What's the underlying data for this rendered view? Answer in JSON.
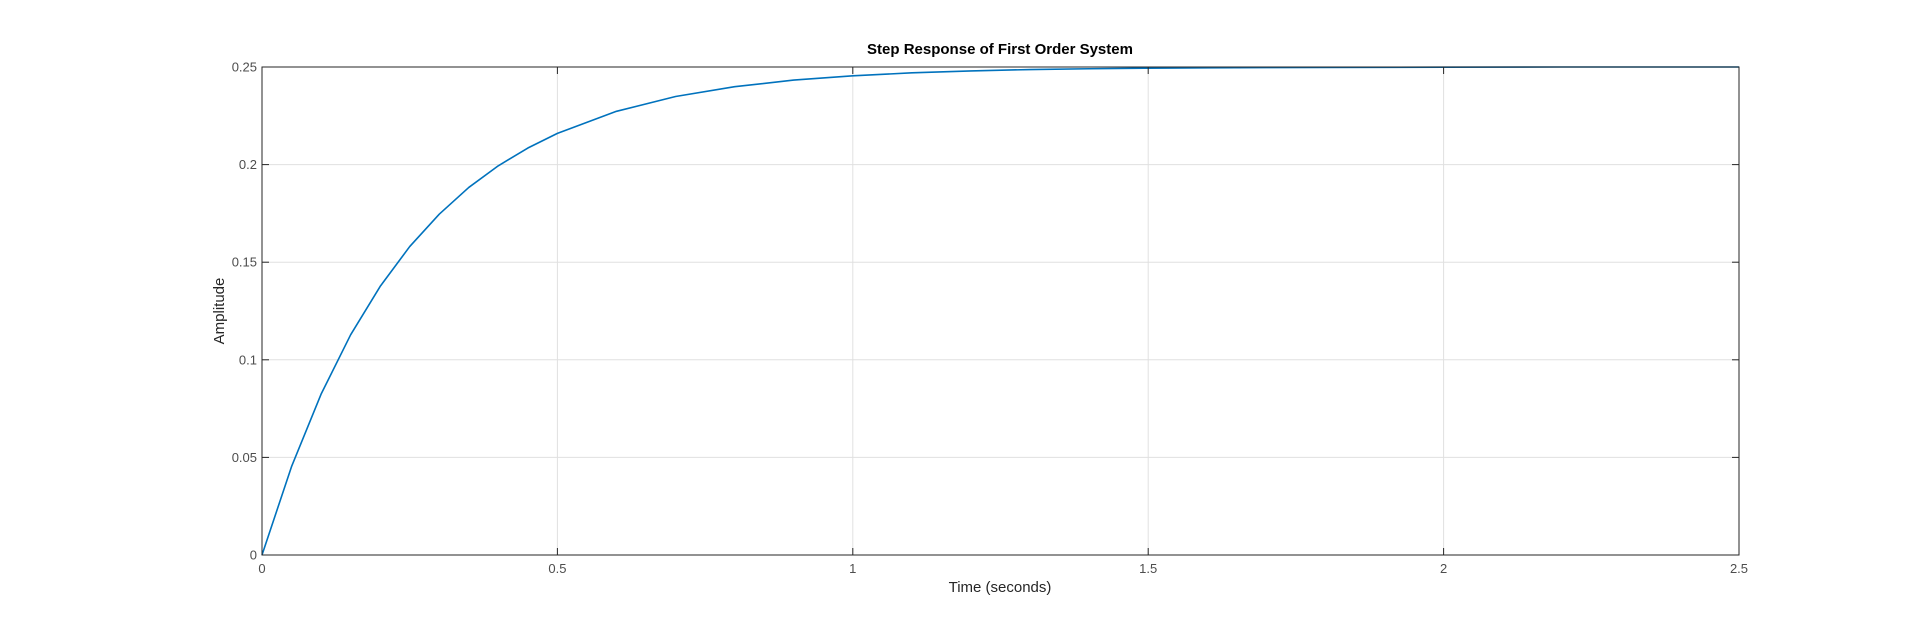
{
  "chart_data": {
    "type": "line",
    "title": "Step Response of First Order System",
    "xlabel": "Time (seconds)",
    "ylabel": "Amplitude",
    "xlim": [
      0,
      2.5
    ],
    "ylim": [
      0,
      0.25
    ],
    "xticks": [
      0,
      0.5,
      1,
      1.5,
      2,
      2.5
    ],
    "xtick_labels": [
      "0",
      "0.5",
      "1",
      "1.5",
      "2",
      "2.5"
    ],
    "yticks": [
      0,
      0.05,
      0.1,
      0.15,
      0.2,
      0.25
    ],
    "ytick_labels": [
      "0",
      "0.05",
      "0.1",
      "0.15",
      "0.2",
      "0.25"
    ],
    "grid": true,
    "steady_state": 0.25,
    "series": [
      {
        "color": "#0072bd",
        "x": [
          0,
          0.05,
          0.1,
          0.15,
          0.2,
          0.25,
          0.3,
          0.35,
          0.4,
          0.45,
          0.5,
          0.6,
          0.7,
          0.8,
          0.9,
          1.0,
          1.1,
          1.2,
          1.3,
          1.4,
          1.5,
          1.6,
          1.7,
          1.8,
          2.0,
          2.2,
          2.5
        ],
        "y": [
          0,
          0.0453,
          0.0824,
          0.1128,
          0.1376,
          0.158,
          0.1746,
          0.1883,
          0.1994,
          0.2085,
          0.216,
          0.2273,
          0.2349,
          0.2399,
          0.2433,
          0.2455,
          0.247,
          0.248,
          0.2487,
          0.2491,
          0.2494,
          0.2496,
          0.2497,
          0.2498,
          0.2499,
          0.25,
          0.25
        ]
      }
    ]
  },
  "style": {
    "axis_color": "#262626",
    "grid_color": "#e0e0e0",
    "line_color": "#0072bd"
  }
}
